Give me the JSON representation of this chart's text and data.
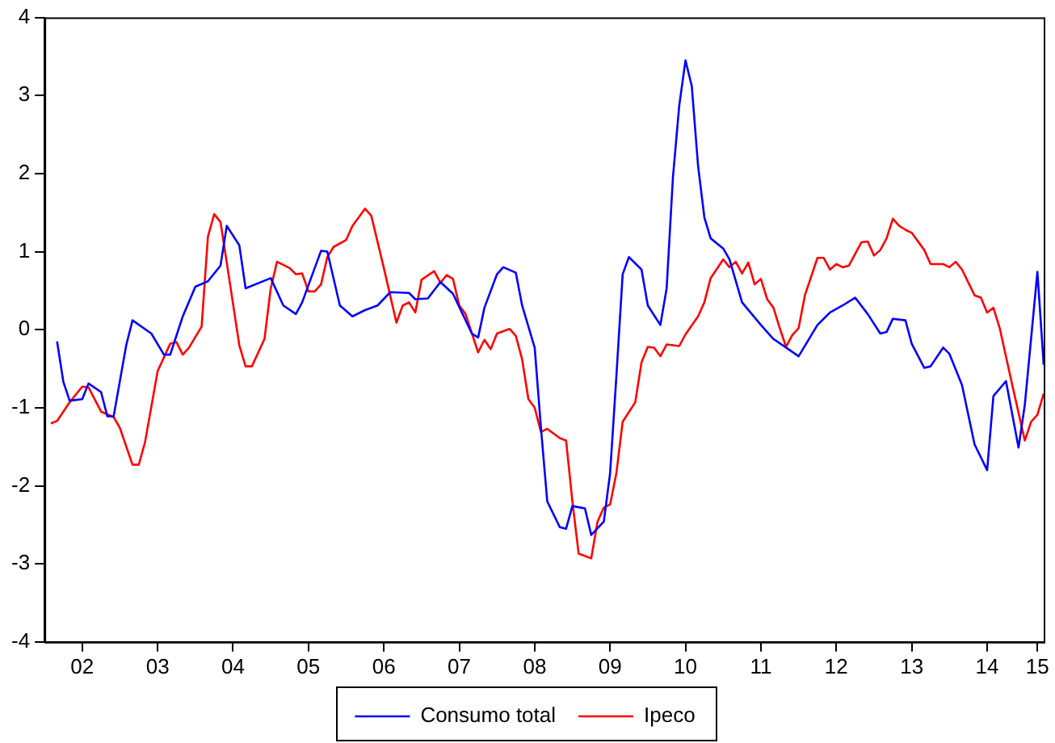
{
  "chart_data": {
    "type": "line",
    "xlim": [
      "2002-01",
      "2015-04"
    ],
    "xticks": [
      {
        "value": "2002-07",
        "label": "02"
      },
      {
        "value": "2003-07",
        "label": "03"
      },
      {
        "value": "2004-07",
        "label": "04"
      },
      {
        "value": "2005-07",
        "label": "05"
      },
      {
        "value": "2006-07",
        "label": "06"
      },
      {
        "value": "2007-07",
        "label": "07"
      },
      {
        "value": "2008-07",
        "label": "08"
      },
      {
        "value": "2009-07",
        "label": "09"
      },
      {
        "value": "2010-07",
        "label": "10"
      },
      {
        "value": "2011-07",
        "label": "11"
      },
      {
        "value": "2012-07",
        "label": "12"
      },
      {
        "value": "2013-07",
        "label": "13"
      },
      {
        "value": "2014-07",
        "label": "14"
      },
      {
        "value": "2015-03",
        "label": "15"
      }
    ],
    "ylim": [
      -4,
      4
    ],
    "yticks": [
      -4,
      -3,
      -2,
      -1,
      0,
      1,
      2,
      3,
      4
    ],
    "grid": false,
    "legend": "bottom",
    "marker": "none",
    "line_style": "solid",
    "series": [
      {
        "name": "Consumo total",
        "color": "#0000ff",
        "x": [
          "2002-03",
          "2002-04",
          "2002-05",
          "2002-07",
          "2002-08",
          "2002-10",
          "2002-11",
          "2002-12",
          "2003-02",
          "2003-03",
          "2003-06",
          "2003-08",
          "2003-09",
          "2003-11",
          "2004-01",
          "2004-03",
          "2004-05",
          "2004-06",
          "2004-08",
          "2004-09",
          "2005-01",
          "2005-03",
          "2005-05",
          "2005-06",
          "2005-09",
          "2005-10",
          "2005-12",
          "2006-02",
          "2006-04",
          "2006-06",
          "2006-08",
          "2006-11",
          "2006-12",
          "2007-02",
          "2007-04",
          "2007-06",
          "2007-09",
          "2007-10",
          "2007-11",
          "2008-01",
          "2008-02",
          "2008-04",
          "2008-05",
          "2008-07",
          "2008-08",
          "2008-09",
          "2008-11",
          "2008-12",
          "2009-01",
          "2009-03",
          "2009-04",
          "2009-06",
          "2009-07",
          "2009-08",
          "2009-09",
          "2009-10",
          "2009-12",
          "2010-01",
          "2010-03",
          "2010-04",
          "2010-05",
          "2010-06",
          "2010-07",
          "2010-08",
          "2010-09",
          "2010-10",
          "2010-11",
          "2011-01",
          "2011-02",
          "2011-04",
          "2011-07",
          "2011-09",
          "2011-11",
          "2012-01",
          "2012-04",
          "2012-06",
          "2012-08",
          "2012-10",
          "2012-12",
          "2013-02",
          "2013-03",
          "2013-04",
          "2013-06",
          "2013-07",
          "2013-09",
          "2013-10",
          "2013-12",
          "2014-01",
          "2014-03",
          "2014-05",
          "2014-07",
          "2014-08",
          "2014-10",
          "2014-12",
          "2015-01",
          "2015-03",
          "2015-04"
        ],
        "values": [
          -0.15,
          -0.67,
          -0.91,
          -0.89,
          -0.69,
          -0.8,
          -1.11,
          -1.11,
          -0.2,
          0.12,
          -0.05,
          -0.32,
          -0.32,
          0.17,
          0.55,
          0.62,
          0.82,
          1.33,
          1.08,
          0.53,
          0.66,
          0.31,
          0.2,
          0.35,
          1.01,
          1.0,
          0.31,
          0.17,
          0.25,
          0.31,
          0.48,
          0.47,
          0.39,
          0.4,
          0.61,
          0.46,
          -0.05,
          -0.1,
          0.28,
          0.71,
          0.8,
          0.73,
          0.31,
          -0.23,
          -1.26,
          -2.2,
          -2.53,
          -2.55,
          -2.26,
          -2.29,
          -2.63,
          -2.46,
          -1.84,
          -0.6,
          0.71,
          0.93,
          0.77,
          0.31,
          0.06,
          0.53,
          1.95,
          2.87,
          3.45,
          3.12,
          2.1,
          1.44,
          1.17,
          1.04,
          0.9,
          0.35,
          0.06,
          -0.12,
          -0.23,
          -0.34,
          0.06,
          0.22,
          0.31,
          0.41,
          0.2,
          -0.05,
          -0.03,
          0.14,
          0.12,
          -0.18,
          -0.49,
          -0.47,
          -0.23,
          -0.31,
          -0.71,
          -1.47,
          -1.8,
          -0.85,
          -0.66,
          -1.51,
          -0.96,
          0.74,
          -0.45
        ]
      },
      {
        "name": "Ipeco",
        "color": "#ff0000",
        "x": [
          "2002-02",
          "2002-03",
          "2002-05",
          "2002-07",
          "2002-08",
          "2002-10",
          "2002-12",
          "2003-01",
          "2003-03",
          "2003-04",
          "2003-05",
          "2003-07",
          "2003-09",
          "2003-10",
          "2003-11",
          "2003-12",
          "2004-02",
          "2004-03",
          "2004-04",
          "2004-05",
          "2004-06",
          "2004-08",
          "2004-09",
          "2004-10",
          "2004-12",
          "2005-01",
          "2005-02",
          "2005-04",
          "2005-05",
          "2005-06",
          "2005-07",
          "2005-08",
          "2005-09",
          "2005-10",
          "2005-11",
          "2006-01",
          "2006-02",
          "2006-04",
          "2006-05",
          "2006-07",
          "2006-09",
          "2006-10",
          "2006-11",
          "2006-12",
          "2007-01",
          "2007-03",
          "2007-04",
          "2007-05",
          "2007-06",
          "2007-07",
          "2007-08",
          "2007-10",
          "2007-11",
          "2007-12",
          "2008-01",
          "2008-03",
          "2008-04",
          "2008-05",
          "2008-06",
          "2008-07",
          "2008-08",
          "2008-09",
          "2008-11",
          "2008-12",
          "2009-01",
          "2009-02",
          "2009-04",
          "2009-05",
          "2009-06",
          "2009-07",
          "2009-08",
          "2009-09",
          "2009-11",
          "2009-12",
          "2010-01",
          "2010-02",
          "2010-03",
          "2010-04",
          "2010-06",
          "2010-07",
          "2010-09",
          "2010-10",
          "2010-11",
          "2011-01",
          "2011-02",
          "2011-03",
          "2011-04",
          "2011-05",
          "2011-06",
          "2011-07",
          "2011-08",
          "2011-09",
          "2011-10",
          "2011-11",
          "2011-12",
          "2012-01",
          "2012-02",
          "2012-04",
          "2012-05",
          "2012-06",
          "2012-07",
          "2012-08",
          "2012-09",
          "2012-11",
          "2012-12",
          "2013-01",
          "2013-02",
          "2013-03",
          "2013-04",
          "2013-05",
          "2013-06",
          "2013-07",
          "2013-09",
          "2013-10",
          "2013-12",
          "2014-01",
          "2014-02",
          "2014-03",
          "2014-05",
          "2014-06",
          "2014-07",
          "2014-08",
          "2014-09",
          "2014-11",
          "2015-01",
          "2015-02",
          "2015-03",
          "2015-04"
        ],
        "values": [
          -1.2,
          -1.17,
          -0.93,
          -0.73,
          -0.74,
          -1.05,
          -1.12,
          -1.26,
          -1.73,
          -1.73,
          -1.44,
          -0.53,
          -0.18,
          -0.16,
          -0.32,
          -0.23,
          0.04,
          1.19,
          1.48,
          1.38,
          0.86,
          -0.2,
          -0.47,
          -0.47,
          -0.12,
          0.53,
          0.87,
          0.79,
          0.71,
          0.72,
          0.49,
          0.49,
          0.58,
          0.93,
          1.06,
          1.15,
          1.33,
          1.55,
          1.46,
          0.79,
          0.09,
          0.31,
          0.35,
          0.22,
          0.64,
          0.75,
          0.6,
          0.7,
          0.65,
          0.31,
          0.2,
          -0.29,
          -0.13,
          -0.25,
          -0.05,
          0.01,
          -0.08,
          -0.38,
          -0.89,
          -1.0,
          -1.31,
          -1.27,
          -1.39,
          -1.42,
          -2.2,
          -2.87,
          -2.93,
          -2.46,
          -2.28,
          -2.24,
          -1.84,
          -1.18,
          -0.93,
          -0.42,
          -0.22,
          -0.23,
          -0.34,
          -0.19,
          -0.21,
          -0.06,
          0.17,
          0.35,
          0.66,
          0.9,
          0.8,
          0.87,
          0.72,
          0.86,
          0.58,
          0.65,
          0.39,
          0.28,
          0.02,
          -0.22,
          -0.07,
          0.02,
          0.44,
          0.92,
          0.92,
          0.77,
          0.84,
          0.8,
          0.82,
          1.12,
          1.13,
          0.95,
          1.02,
          1.17,
          1.42,
          1.33,
          1.28,
          1.24,
          1.02,
          0.84,
          0.84,
          0.8,
          0.87,
          0.77,
          0.44,
          0.41,
          0.22,
          0.28,
          0.02,
          -0.71,
          -1.42,
          -1.18,
          -1.09,
          -0.82
        ]
      }
    ]
  }
}
